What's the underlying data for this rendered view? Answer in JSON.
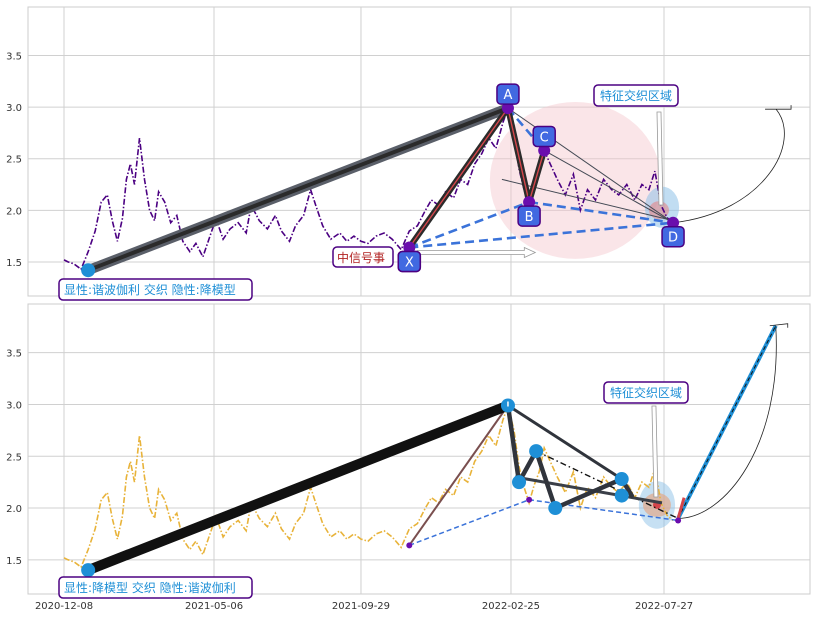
{
  "chart_data": [
    {
      "panel": "top",
      "type": "line",
      "x_ticks": [
        "2020-12-08",
        "2021-05-06",
        "2021-09-29",
        "2022-02-25",
        "2022-07-27"
      ],
      "y_ticks": [
        "1.5",
        "2.0",
        "2.5",
        "3.0",
        "3.5"
      ],
      "ylim": [
        1.17,
        3.97
      ],
      "grid": true,
      "series_color": "#4b0082",
      "price_series": [
        [
          "2020-12-08",
          1.52
        ],
        [
          "2020-12-12",
          1.5
        ],
        [
          "2020-12-18",
          1.48
        ],
        [
          "2020-12-25",
          1.43
        ],
        [
          "2021-01-01",
          1.6
        ],
        [
          "2021-01-08",
          1.8
        ],
        [
          "2021-01-14",
          2.08
        ],
        [
          "2021-01-20",
          2.15
        ],
        [
          "2021-01-25",
          1.9
        ],
        [
          "2021-01-30",
          1.7
        ],
        [
          "2021-02-04",
          1.92
        ],
        [
          "2021-02-08",
          2.3
        ],
        [
          "2021-02-12",
          2.45
        ],
        [
          "2021-02-16",
          2.25
        ],
        [
          "2021-02-21",
          2.7
        ],
        [
          "2021-02-26",
          2.3
        ],
        [
          "2021-03-03",
          2.0
        ],
        [
          "2021-03-08",
          1.9
        ],
        [
          "2021-03-12",
          2.18
        ],
        [
          "2021-03-18",
          2.08
        ],
        [
          "2021-03-24",
          1.88
        ],
        [
          "2021-03-30",
          1.95
        ],
        [
          "2021-04-05",
          1.7
        ],
        [
          "2021-04-12",
          1.6
        ],
        [
          "2021-04-18",
          1.68
        ],
        [
          "2021-04-25",
          1.55
        ],
        [
          "2021-05-02",
          1.75
        ],
        [
          "2021-05-08",
          1.92
        ],
        [
          "2021-05-15",
          1.72
        ],
        [
          "2021-05-22",
          1.82
        ],
        [
          "2021-05-30",
          1.88
        ],
        [
          "2021-06-07",
          1.78
        ],
        [
          "2021-06-12",
          2.05
        ],
        [
          "2021-06-20",
          1.9
        ],
        [
          "2021-06-28",
          1.82
        ],
        [
          "2021-07-06",
          1.95
        ],
        [
          "2021-07-12",
          1.8
        ],
        [
          "2021-07-20",
          1.7
        ],
        [
          "2021-07-26",
          1.85
        ],
        [
          "2021-08-03",
          1.95
        ],
        [
          "2021-08-10",
          2.2
        ],
        [
          "2021-08-15",
          2.05
        ],
        [
          "2021-08-22",
          1.85
        ],
        [
          "2021-08-30",
          1.72
        ],
        [
          "2021-09-08",
          1.78
        ],
        [
          "2021-09-15",
          1.7
        ],
        [
          "2021-09-22",
          1.75
        ],
        [
          "2021-09-29",
          1.7
        ],
        [
          "2021-10-06",
          1.68
        ],
        [
          "2021-10-14",
          1.75
        ],
        [
          "2021-10-22",
          1.78
        ],
        [
          "2021-10-30",
          1.72
        ],
        [
          "2021-11-08",
          1.62
        ],
        [
          "2021-11-16",
          1.8
        ],
        [
          "2021-11-24",
          1.85
        ],
        [
          "2021-12-02",
          2.0
        ],
        [
          "2021-12-08",
          2.1
        ],
        [
          "2021-12-15",
          2.05
        ],
        [
          "2021-12-22",
          2.18
        ],
        [
          "2021-12-30",
          2.12
        ],
        [
          "2022-01-06",
          2.3
        ],
        [
          "2022-01-13",
          2.25
        ],
        [
          "2022-01-20",
          2.45
        ],
        [
          "2022-01-27",
          2.55
        ],
        [
          "2022-02-03",
          2.7
        ],
        [
          "2022-02-10",
          2.6
        ],
        [
          "2022-02-17",
          2.85
        ],
        [
          "2022-02-22",
          2.99
        ],
        [
          "2022-02-28",
          2.75
        ],
        [
          "2022-03-05",
          2.4
        ],
        [
          "2022-03-10",
          2.2
        ],
        [
          "2022-03-15",
          2.05
        ],
        [
          "2022-03-20",
          2.22
        ],
        [
          "2022-03-25",
          2.35
        ],
        [
          "2022-03-30",
          2.58
        ],
        [
          "2022-04-05",
          2.45
        ],
        [
          "2022-04-12",
          2.3
        ],
        [
          "2022-04-20",
          2.15
        ],
        [
          "2022-04-28",
          2.35
        ],
        [
          "2022-05-05",
          2.0
        ],
        [
          "2022-05-12",
          2.2
        ],
        [
          "2022-05-20",
          2.1
        ],
        [
          "2022-05-28",
          2.3
        ],
        [
          "2022-06-05",
          2.2
        ],
        [
          "2022-06-12",
          2.15
        ],
        [
          "2022-06-20",
          2.25
        ],
        [
          "2022-06-28",
          2.1
        ],
        [
          "2022-07-05",
          2.25
        ],
        [
          "2022-07-12",
          2.2
        ],
        [
          "2022-07-18",
          2.38
        ],
        [
          "2022-07-24",
          2.05
        ],
        [
          "2022-07-30",
          1.93
        ],
        [
          "2022-08-05",
          1.88
        ]
      ],
      "xabcd_points": {
        "X": [
          "2021-11-16",
          1.64
        ],
        "A": [
          "2022-02-22",
          2.99
        ],
        "B": [
          "2022-03-15",
          2.08
        ],
        "C": [
          "2022-03-30",
          2.58
        ],
        "D": [
          "2022-08-05",
          1.88
        ]
      },
      "thick_lines": [
        [
          [
            "2021-01-01",
            1.42
          ],
          [
            "2022-02-22",
            2.99
          ]
        ],
        [
          [
            "2021-11-16",
            1.64
          ],
          [
            "2022-02-22",
            2.99
          ]
        ],
        [
          [
            "2022-02-22",
            2.99
          ],
          [
            "2022-03-15",
            2.08
          ]
        ],
        [
          [
            "2022-03-15",
            2.08
          ],
          [
            "2022-03-30",
            2.58
          ]
        ]
      ],
      "start_point": [
        "2021-01-01",
        1.42
      ],
      "zone_ellipse": {
        "center": [
          "2022-04-30",
          2.29
        ],
        "radii_days": 85,
        "radius_y": 0.76
      },
      "feature_zone": {
        "center": [
          "2022-07-25",
          2.03
        ],
        "radii_days": 17,
        "radius_y": 0.2
      },
      "labels": {
        "A": "A",
        "B": "B",
        "C": "C",
        "D": "D",
        "X": "X",
        "feature_zone": "特征交织区域",
        "event": "中信号事",
        "bottom_note": "显性:谐波伽利 交织 隐性:降模型"
      }
    },
    {
      "panel": "bottom",
      "type": "line",
      "x_ticks": [
        "2020-12-08",
        "2021-05-06",
        "2021-09-29",
        "2022-02-25",
        "2022-07-27"
      ],
      "y_ticks": [
        "1.5",
        "2.0",
        "2.5",
        "3.0",
        "3.5"
      ],
      "ylim": [
        1.17,
        3.97
      ],
      "grid": true,
      "series_color": "#e8b33a",
      "thick_lines": [
        [
          [
            "2021-01-01",
            1.4
          ],
          [
            "2022-02-22",
            2.99
          ]
        ],
        [
          [
            "2022-02-22",
            2.99
          ],
          [
            "2022-03-05",
            2.25
          ]
        ],
        [
          [
            "2022-03-05",
            2.25
          ],
          [
            "2022-03-22",
            2.55
          ]
        ],
        [
          [
            "2022-03-22",
            2.55
          ],
          [
            "2022-04-10",
            2.0
          ]
        ],
        [
          [
            "2022-04-10",
            2.0
          ],
          [
            "2022-06-15",
            2.28
          ]
        ],
        [
          [
            "2022-06-15",
            2.28
          ],
          [
            "2022-06-25",
            2.12
          ]
        ],
        [
          [
            "2022-02-22",
            2.99
          ],
          [
            "2022-06-15",
            2.28
          ]
        ]
      ],
      "nodes": [
        [
          "2021-01-01",
          1.4
        ],
        [
          "2022-02-22",
          2.99
        ],
        [
          "2022-03-05",
          2.25
        ],
        [
          "2022-03-22",
          2.55
        ],
        [
          "2022-04-10",
          2.0
        ],
        [
          "2022-06-15",
          2.28
        ],
        [
          "2022-06-15",
          2.12
        ]
      ],
      "projection_line": [
        [
          "2022-08-10",
          1.9
        ],
        [
          "2022-11-15",
          3.76
        ]
      ],
      "feature_zone": {
        "center": [
          "2022-07-20",
          2.03
        ],
        "radii_days": 18,
        "radius_y": 0.23
      },
      "labels": {
        "feature_zone": "特征交织区域",
        "bottom_note": "显性:降模型 交织 隐性:谐波伽利"
      }
    }
  ]
}
